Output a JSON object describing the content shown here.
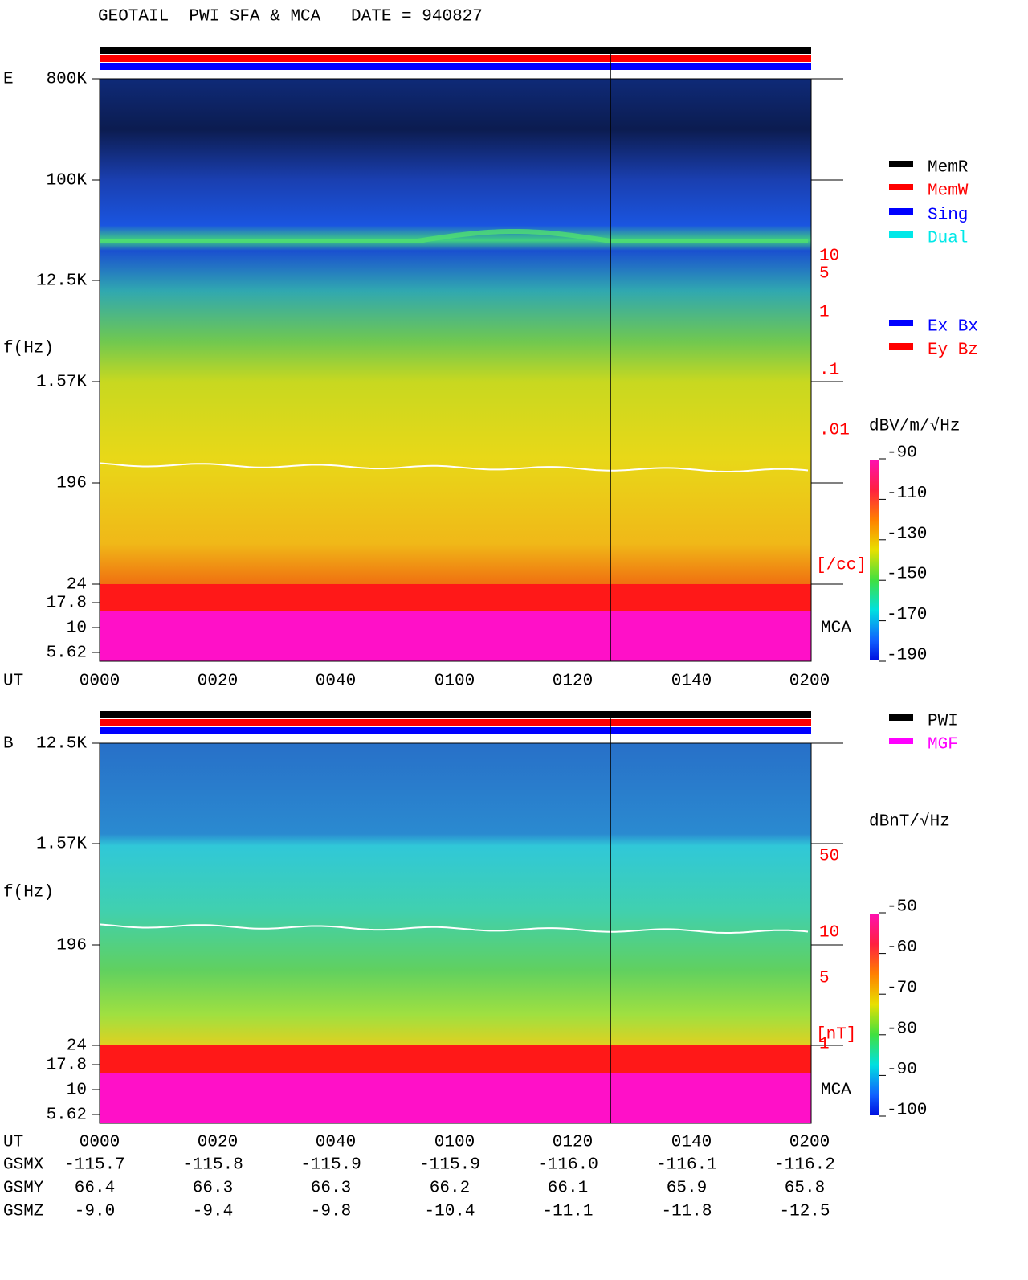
{
  "header": {
    "title": "GEOTAIL  PWI SFA & MCA   DATE = 940827"
  },
  "panels": [
    {
      "label": "E",
      "y_label": "f(Hz)",
      "y_ticks": [
        "800K",
        "100K",
        "12.5K",
        "1.57K",
        "196",
        "24",
        "17.8",
        "10",
        "5.62"
      ],
      "x_label": "UT",
      "x_ticks": [
        "0000",
        "0020",
        "0040",
        "0100",
        "0120",
        "0140",
        "0200"
      ],
      "right_scale": [
        "10",
        "5",
        "1",
        ".1",
        ".01",
        "[/cc]"
      ],
      "mca_label": "MCA",
      "legend": [
        {
          "label": "MemR",
          "color": "#000000"
        },
        {
          "label": "MemW",
          "color": "#ff0000"
        },
        {
          "label": "Sing",
          "color": "#0000ff"
        },
        {
          "label": "Dual",
          "color": "#00e8e8"
        }
      ],
      "legend2": [
        {
          "label": "Ex Bx",
          "color": "#0000ff"
        },
        {
          "label": "Ey Bz",
          "color": "#ff0000"
        }
      ],
      "colorbar": {
        "unit": "dBV/m/√Hz",
        "ticks": [
          "-90",
          "-110",
          "-130",
          "-150",
          "-170",
          "-190"
        ]
      }
    },
    {
      "label": "B",
      "y_label": "f(Hz)",
      "y_ticks": [
        "12.5K",
        "1.57K",
        "196",
        "24",
        "17.8",
        "10",
        "5.62"
      ],
      "x_label": "UT",
      "x_ticks": [
        "0000",
        "0020",
        "0040",
        "0100",
        "0120",
        "0140",
        "0200"
      ],
      "right_scale": [
        "50",
        "10",
        "5",
        "1",
        "[nT]"
      ],
      "mca_label": "MCA",
      "legend": [
        {
          "label": "PWI",
          "color": "#000000"
        },
        {
          "label": "MGF",
          "color": "#ff00ff"
        }
      ],
      "legend2": [],
      "colorbar": {
        "unit": "dBnT/√Hz",
        "ticks": [
          "-50",
          "-60",
          "-70",
          "-80",
          "-90",
          "-100"
        ]
      }
    }
  ],
  "orbit": {
    "rows": [
      {
        "label": "GSMX",
        "values": [
          "-115.7",
          "-115.8",
          "-115.9",
          "-115.9",
          "-116.0",
          "-116.1",
          "-116.2"
        ]
      },
      {
        "label": "GSMY",
        "values": [
          "66.4",
          "66.3",
          "66.3",
          "66.2",
          "66.1",
          "65.9",
          "65.8"
        ]
      },
      {
        "label": "GSMZ",
        "values": [
          "-9.0",
          "-9.4",
          "-9.8",
          "-10.4",
          "-11.1",
          "-11.8",
          "-12.5"
        ]
      }
    ]
  }
}
